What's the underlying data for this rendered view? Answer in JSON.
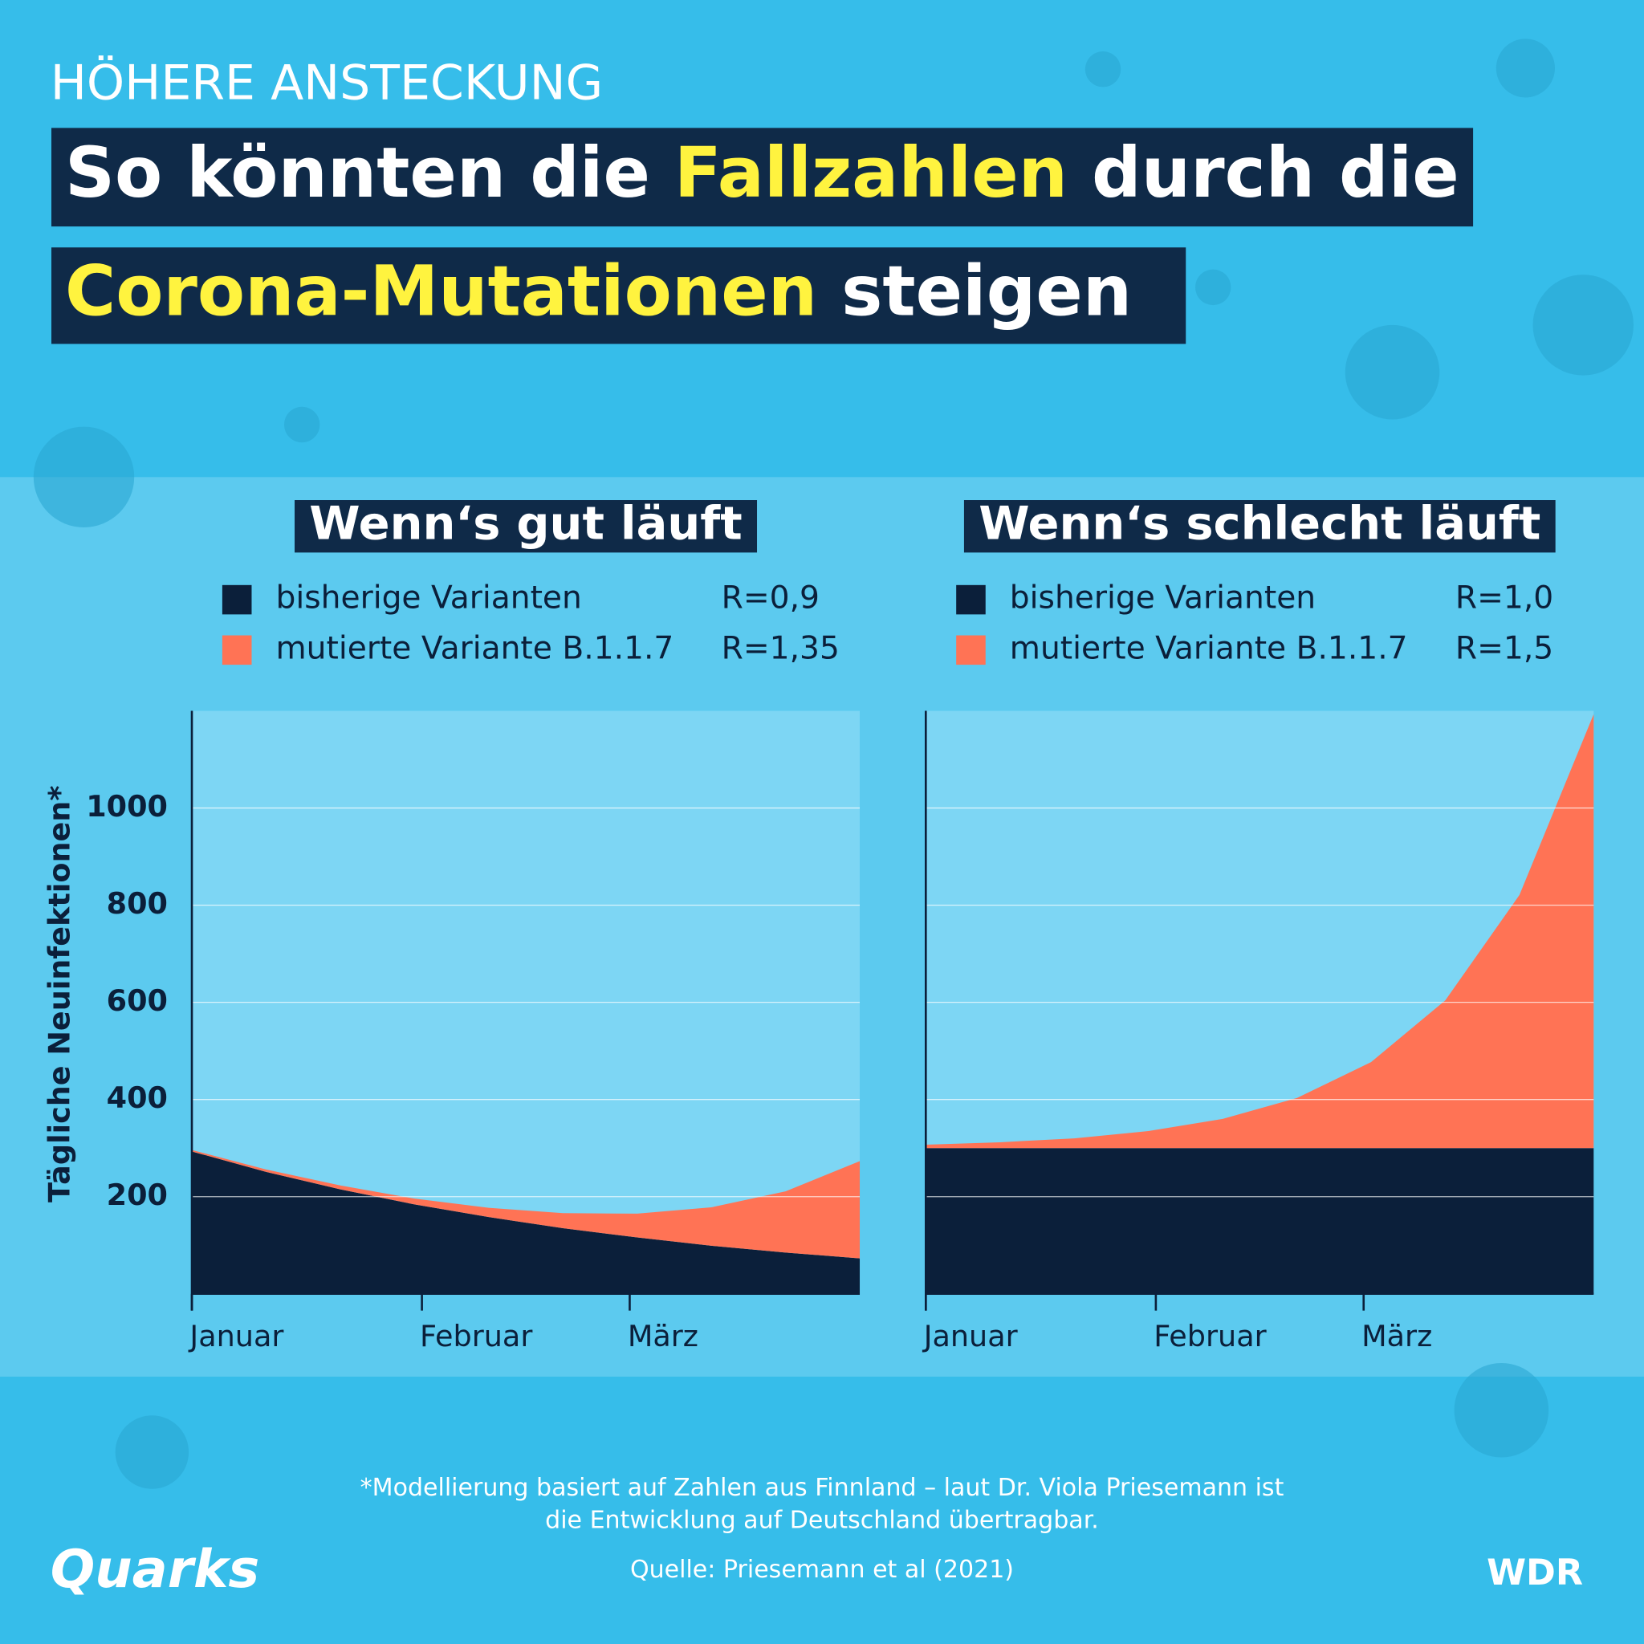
{
  "header": {
    "kicker": "HÖHERE ANSTECKUNG",
    "title_line1": [
      "So könnten die",
      "Fallzahlen",
      "durch die"
    ],
    "title_line2": [
      "Corona-Mutationen",
      "steigen"
    ]
  },
  "chart_data": [
    {
      "type": "stacked-area",
      "title": "Wenn‘s gut läuft",
      "ylabel": "Tägliche Neuinfektionen*",
      "x": [
        0,
        10,
        20,
        30,
        40,
        50,
        60,
        70,
        80,
        90
      ],
      "xlim": [
        0,
        90
      ],
      "xticks": [
        {
          "value": 0,
          "label": "Januar"
        },
        {
          "value": 31,
          "label": "Februar"
        },
        {
          "value": 59,
          "label": "März"
        }
      ],
      "ylim": [
        0,
        1200
      ],
      "yticks": [
        200,
        400,
        600,
        800,
        1000
      ],
      "grid": true,
      "series": [
        {
          "name": "bisherige Varianten",
          "r": "R=0,9",
          "color": "#0b1f3a",
          "values": [
            293,
            251,
            215,
            184,
            158,
            135,
            116,
            99,
            85,
            73
          ]
        },
        {
          "name": "mutierte Variante B.1.1.7",
          "r": "R=1,35",
          "color": "#ff7355",
          "values": [
            3,
            5,
            8,
            12,
            19,
            31,
            49,
            79,
            126,
            200
          ]
        }
      ]
    },
    {
      "type": "stacked-area",
      "title": "Wenn‘s schlecht läuft",
      "x": [
        0,
        10,
        20,
        30,
        40,
        50,
        60,
        70,
        80,
        90
      ],
      "xlim": [
        0,
        90
      ],
      "xticks": [
        {
          "value": 0,
          "label": "Januar"
        },
        {
          "value": 31,
          "label": "Februar"
        },
        {
          "value": 59,
          "label": "März"
        }
      ],
      "ylim": [
        0,
        1200
      ],
      "yticks": [
        200,
        400,
        600,
        800,
        1000
      ],
      "grid": true,
      "series": [
        {
          "name": "bisherige Varianten",
          "r": "R=1,0",
          "color": "#0b1f3a",
          "values": [
            300,
            300,
            300,
            300,
            300,
            300,
            300,
            300,
            300,
            300
          ]
        },
        {
          "name": "mutierte Variante B.1.1.7",
          "r": "R=1,5",
          "color": "#ff7355",
          "values": [
            7,
            12,
            20,
            35,
            60,
            103,
            177,
            304,
            521,
            893
          ]
        }
      ]
    }
  ],
  "footnote": [
    "*Modellierung basiert auf Zahlen aus Finnland – laut Dr. Viola Priesemann ist",
    "die Entwicklung auf Deutschland übertragbar."
  ],
  "source": "Quelle: Priesemann et al (2021)",
  "logos": {
    "left": "Quarks",
    "right": "WDR"
  }
}
